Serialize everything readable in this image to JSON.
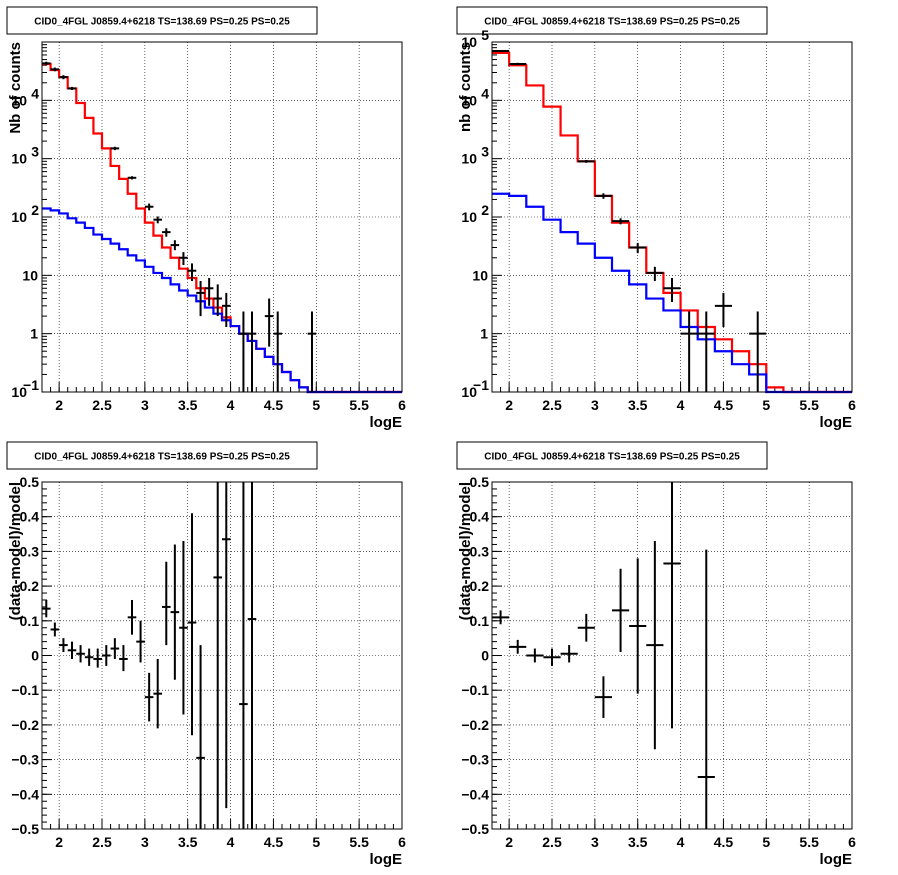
{
  "chart_data": [
    {
      "type": "step",
      "title": "CID0_4FGL J0859.4+6218 TS=138.69 PS=0.25 PS=0.25",
      "xlabel": "logE",
      "ylabel": "Nb of counts",
      "xlim": [
        1.8,
        6.0
      ],
      "ylim": [
        0.1,
        100000
      ],
      "yscale": "log",
      "grid": true,
      "xticks": [
        "2",
        "2.5",
        "3",
        "3.5",
        "4",
        "4.5",
        "5",
        "5.5",
        "6"
      ],
      "yticks": [
        {
          "v": 0.1,
          "label": "10",
          "exp": "−1"
        },
        {
          "v": 1,
          "label": "1"
        },
        {
          "v": 10,
          "label": "10"
        },
        {
          "v": 100,
          "label": "10",
          "exp": "2"
        },
        {
          "v": 1000,
          "label": "10",
          "exp": "3"
        },
        {
          "v": 10000,
          "label": "10",
          "exp": "4"
        }
      ],
      "bin_edges": [
        1.8,
        1.9,
        2.0,
        2.1,
        2.2,
        2.3,
        2.4,
        2.5,
        2.6,
        2.7,
        2.8,
        2.9,
        3.0,
        3.1,
        3.2,
        3.3,
        3.4,
        3.5,
        3.6,
        3.7,
        3.8,
        3.9,
        4.0,
        4.1,
        4.2,
        4.3,
        4.4,
        4.5,
        4.6,
        4.7,
        4.8,
        4.9,
        5.0,
        5.1,
        5.2,
        5.3,
        5.4,
        5.5,
        5.6,
        5.7,
        5.8,
        5.9,
        6.0
      ],
      "series": [
        {
          "color": "#ff0000",
          "values": [
            42000,
            33000,
            25000,
            16000,
            9000,
            5000,
            2700,
            1500,
            750,
            450,
            250,
            140,
            80,
            48,
            30,
            20,
            13,
            9,
            6,
            4,
            2.8,
            1.9,
            1.35,
            1.0,
            0.75,
            0.55,
            0.4,
            0.3,
            0.22,
            0.16,
            0.12,
            0.1,
            0.1,
            0.1,
            0.1,
            0.1,
            0.1,
            0.1,
            0.1,
            0.1,
            0.1,
            0.1
          ]
        },
        {
          "color": "#0000ff",
          "values": [
            140,
            130,
            115,
            95,
            80,
            65,
            50,
            42,
            35,
            28,
            22,
            18,
            14,
            11,
            9,
            7,
            5.5,
            4.5,
            3.6,
            2.8,
            2.2,
            1.7,
            1.35,
            1.0,
            0.75,
            0.55,
            0.4,
            0.3,
            0.22,
            0.16,
            0.12,
            0.1,
            0.1,
            0.1,
            0.1,
            0.1,
            0.1,
            0.1,
            0.1,
            0.1,
            0.1,
            0.1
          ]
        }
      ],
      "points": [
        {
          "x": 1.85,
          "y": 43000,
          "ylo": 40000,
          "yhi": 46000
        },
        {
          "x": 1.95,
          "y": 34000,
          "ylo": 31500,
          "yhi": 36500
        },
        {
          "x": 2.05,
          "y": 25000,
          "ylo": 23000,
          "yhi": 27000
        },
        {
          "x": 2.15,
          "y": 16000,
          "ylo": 15000,
          "yhi": 17000
        },
        {
          "x": 2.65,
          "y": 1500,
          "ylo": 1400,
          "yhi": 1600
        },
        {
          "x": 2.85,
          "y": 470,
          "ylo": 440,
          "yhi": 500
        },
        {
          "x": 3.05,
          "y": 150,
          "ylo": 130,
          "yhi": 170
        },
        {
          "x": 3.15,
          "y": 90,
          "ylo": 78,
          "yhi": 102
        },
        {
          "x": 3.25,
          "y": 55,
          "ylo": 46,
          "yhi": 64
        },
        {
          "x": 3.35,
          "y": 33,
          "ylo": 27,
          "yhi": 40
        },
        {
          "x": 3.45,
          "y": 20,
          "ylo": 15,
          "yhi": 25
        },
        {
          "x": 3.55,
          "y": 12,
          "ylo": 8,
          "yhi": 16
        },
        {
          "x": 3.65,
          "y": 5,
          "ylo": 2,
          "yhi": 8
        },
        {
          "x": 3.75,
          "y": 6,
          "ylo": 3,
          "yhi": 9
        },
        {
          "x": 3.85,
          "y": 4,
          "ylo": 2,
          "yhi": 7
        },
        {
          "x": 3.95,
          "y": 3,
          "ylo": 1.3,
          "yhi": 5
        },
        {
          "x": 4.15,
          "y": 1,
          "ylo": 0.1,
          "yhi": 2.4
        },
        {
          "x": 4.25,
          "y": 1,
          "ylo": 0.1,
          "yhi": 2.4
        },
        {
          "x": 4.45,
          "y": 2,
          "ylo": 0.6,
          "yhi": 4
        },
        {
          "x": 4.55,
          "y": 1,
          "ylo": 0.1,
          "yhi": 2.4
        },
        {
          "x": 4.95,
          "y": 1,
          "ylo": 0.1,
          "yhi": 2.4
        }
      ]
    },
    {
      "type": "step",
      "title": "CID0_4FGL J0859.4+6218 TS=138.69 PS=0.25 PS=0.25",
      "xlabel": "logE",
      "ylabel": "nb of counts",
      "xlim": [
        1.8,
        6.0
      ],
      "ylim": [
        0.1,
        100000
      ],
      "yscale": "log",
      "grid": true,
      "xticks": [
        "2",
        "2.5",
        "3",
        "3.5",
        "4",
        "4.5",
        "5",
        "5.5",
        "6"
      ],
      "yticks": [
        {
          "v": 0.1,
          "label": "10",
          "exp": "−1"
        },
        {
          "v": 1,
          "label": "1"
        },
        {
          "v": 10,
          "label": "10"
        },
        {
          "v": 100,
          "label": "10",
          "exp": "2"
        },
        {
          "v": 1000,
          "label": "10",
          "exp": "3"
        },
        {
          "v": 10000,
          "label": "10",
          "exp": "4"
        },
        {
          "v": 100000,
          "label": "10",
          "exp": "5"
        }
      ],
      "bin_edges": [
        1.8,
        2.0,
        2.2,
        2.4,
        2.6,
        2.8,
        3.0,
        3.2,
        3.4,
        3.6,
        3.8,
        4.0,
        4.2,
        4.4,
        4.6,
        4.8,
        5.0,
        5.2,
        5.4,
        5.6,
        5.8,
        6.0
      ],
      "series": [
        {
          "color": "#ff0000",
          "values": [
            65000,
            40000,
            18000,
            7800,
            2500,
            900,
            230,
            80,
            30,
            11,
            5,
            2.5,
            1.3,
            0.8,
            0.5,
            0.3,
            0.12,
            0.1,
            0.1,
            0.1,
            0.1
          ]
        },
        {
          "color": "#0000ff",
          "values": [
            250,
            230,
            150,
            90,
            55,
            35,
            20,
            12,
            7,
            4,
            2.5,
            1.3,
            0.8,
            0.5,
            0.3,
            0.2,
            0.1,
            0.1,
            0.1,
            0.1,
            0.1
          ]
        }
      ],
      "points": [
        {
          "x": 1.9,
          "y": 70000,
          "ylo": 67000,
          "yhi": 73000
        },
        {
          "x": 2.1,
          "y": 42000,
          "ylo": 40000,
          "yhi": 44000
        },
        {
          "x": 2.9,
          "y": 900,
          "ylo": 850,
          "yhi": 950
        },
        {
          "x": 3.1,
          "y": 230,
          "ylo": 205,
          "yhi": 255
        },
        {
          "x": 3.3,
          "y": 85,
          "ylo": 75,
          "yhi": 95
        },
        {
          "x": 3.5,
          "y": 30,
          "ylo": 24,
          "yhi": 36
        },
        {
          "x": 3.7,
          "y": 11,
          "ylo": 8,
          "yhi": 14
        },
        {
          "x": 3.9,
          "y": 6,
          "ylo": 3.5,
          "yhi": 9
        },
        {
          "x": 4.1,
          "y": 1,
          "ylo": 0.1,
          "yhi": 2.4
        },
        {
          "x": 4.3,
          "y": 1,
          "ylo": 0.1,
          "yhi": 2.4
        },
        {
          "x": 4.5,
          "y": 3,
          "ylo": 1.3,
          "yhi": 5
        },
        {
          "x": 4.9,
          "y": 1,
          "ylo": 0.1,
          "yhi": 2.4
        }
      ]
    },
    {
      "type": "scatter",
      "title": "CID0_4FGL J0859.4+6218 TS=138.69 PS=0.25 PS=0.25",
      "xlabel": "logE",
      "ylabel": "(data-model)/model",
      "xlim": [
        1.8,
        6.0
      ],
      "ylim": [
        -0.5,
        0.5
      ],
      "grid": true,
      "xticks": [
        "2",
        "2.5",
        "3",
        "3.5",
        "4",
        "4.5",
        "5",
        "5.5",
        "6"
      ],
      "yticks": [
        "−0.5",
        "−0.4",
        "−0.3",
        "−0.2",
        "−0.1",
        "0",
        "0.1",
        "0.2",
        "0.3",
        "0.4",
        "0.5"
      ],
      "points": [
        {
          "x": 1.85,
          "y": 0.135,
          "ylo": 0.11,
          "yhi": 0.16,
          "hw": 0.05
        },
        {
          "x": 1.95,
          "y": 0.075,
          "ylo": 0.055,
          "yhi": 0.095,
          "hw": 0.05
        },
        {
          "x": 2.05,
          "y": 0.03,
          "ylo": 0.01,
          "yhi": 0.05,
          "hw": 0.05
        },
        {
          "x": 2.15,
          "y": 0.015,
          "ylo": -0.01,
          "yhi": 0.04,
          "hw": 0.05
        },
        {
          "x": 2.25,
          "y": 0.005,
          "ylo": -0.02,
          "yhi": 0.03,
          "hw": 0.05
        },
        {
          "x": 2.35,
          "y": -0.005,
          "ylo": -0.03,
          "yhi": 0.02,
          "hw": 0.05
        },
        {
          "x": 2.45,
          "y": -0.01,
          "ylo": -0.035,
          "yhi": 0.02,
          "hw": 0.05
        },
        {
          "x": 2.55,
          "y": 0.0,
          "ylo": -0.03,
          "yhi": 0.03,
          "hw": 0.05
        },
        {
          "x": 2.65,
          "y": 0.02,
          "ylo": -0.01,
          "yhi": 0.05,
          "hw": 0.05
        },
        {
          "x": 2.75,
          "y": -0.01,
          "ylo": -0.045,
          "yhi": 0.03,
          "hw": 0.05
        },
        {
          "x": 2.85,
          "y": 0.11,
          "ylo": 0.06,
          "yhi": 0.16,
          "hw": 0.05
        },
        {
          "x": 2.95,
          "y": 0.04,
          "ylo": -0.02,
          "yhi": 0.1,
          "hw": 0.05
        },
        {
          "x": 3.05,
          "y": -0.12,
          "ylo": -0.19,
          "yhi": -0.05,
          "hw": 0.05
        },
        {
          "x": 3.15,
          "y": -0.11,
          "ylo": -0.21,
          "yhi": -0.01,
          "hw": 0.05
        },
        {
          "x": 3.25,
          "y": 0.14,
          "ylo": 0.03,
          "yhi": 0.27,
          "hw": 0.05
        },
        {
          "x": 3.35,
          "y": 0.125,
          "ylo": -0.07,
          "yhi": 0.32,
          "hw": 0.05
        },
        {
          "x": 3.45,
          "y": 0.08,
          "ylo": -0.17,
          "yhi": 0.33,
          "hw": 0.05
        },
        {
          "x": 3.55,
          "y": 0.095,
          "ylo": -0.23,
          "yhi": 0.41,
          "hw": 0.05
        },
        {
          "x": 3.65,
          "y": -0.295,
          "ylo": -0.5,
          "yhi": 0.03,
          "hw": 0.05
        },
        {
          "x": 3.85,
          "y": 0.225,
          "ylo": -0.5,
          "yhi": 0.5,
          "hw": 0.05
        },
        {
          "x": 3.95,
          "y": 0.335,
          "ylo": -0.44,
          "yhi": 0.5,
          "hw": 0.05
        },
        {
          "x": 4.15,
          "y": -0.14,
          "ylo": -0.5,
          "yhi": 0.5,
          "hw": 0.05
        },
        {
          "x": 4.25,
          "y": 0.105,
          "ylo": -0.5,
          "yhi": 0.5,
          "hw": 0.05
        }
      ]
    },
    {
      "type": "scatter",
      "title": "CID0_4FGL J0859.4+6218 TS=138.69 PS=0.25 PS=0.25",
      "xlabel": "logE",
      "ylabel": "(data-model)/model",
      "xlim": [
        1.8,
        6.0
      ],
      "ylim": [
        -0.5,
        0.5
      ],
      "grid": true,
      "xticks": [
        "2",
        "2.5",
        "3",
        "3.5",
        "4",
        "4.5",
        "5",
        "5.5",
        "6"
      ],
      "yticks": [
        "−0.5",
        "−0.4",
        "−0.3",
        "−0.2",
        "−0.1",
        "0",
        "0.1",
        "0.2",
        "0.3",
        "0.4",
        "0.5"
      ],
      "points": [
        {
          "x": 1.9,
          "y": 0.11,
          "ylo": 0.09,
          "yhi": 0.13,
          "hw": 0.1
        },
        {
          "x": 2.1,
          "y": 0.025,
          "ylo": 0.005,
          "yhi": 0.045,
          "hw": 0.1
        },
        {
          "x": 2.3,
          "y": 0.0,
          "ylo": -0.02,
          "yhi": 0.02,
          "hw": 0.1
        },
        {
          "x": 2.5,
          "y": -0.005,
          "ylo": -0.03,
          "yhi": 0.02,
          "hw": 0.1
        },
        {
          "x": 2.7,
          "y": 0.005,
          "ylo": -0.02,
          "yhi": 0.03,
          "hw": 0.1
        },
        {
          "x": 2.9,
          "y": 0.08,
          "ylo": 0.04,
          "yhi": 0.12,
          "hw": 0.1
        },
        {
          "x": 3.1,
          "y": -0.12,
          "ylo": -0.18,
          "yhi": -0.06,
          "hw": 0.1
        },
        {
          "x": 3.3,
          "y": 0.13,
          "ylo": 0.01,
          "yhi": 0.25,
          "hw": 0.1
        },
        {
          "x": 3.5,
          "y": 0.085,
          "ylo": -0.11,
          "yhi": 0.28,
          "hw": 0.1
        },
        {
          "x": 3.7,
          "y": 0.03,
          "ylo": -0.27,
          "yhi": 0.33,
          "hw": 0.1
        },
        {
          "x": 3.9,
          "y": 0.265,
          "ylo": -0.21,
          "yhi": 0.5,
          "hw": 0.1
        },
        {
          "x": 4.3,
          "y": -0.35,
          "ylo": -0.5,
          "yhi": 0.305,
          "hw": 0.1
        }
      ]
    }
  ]
}
